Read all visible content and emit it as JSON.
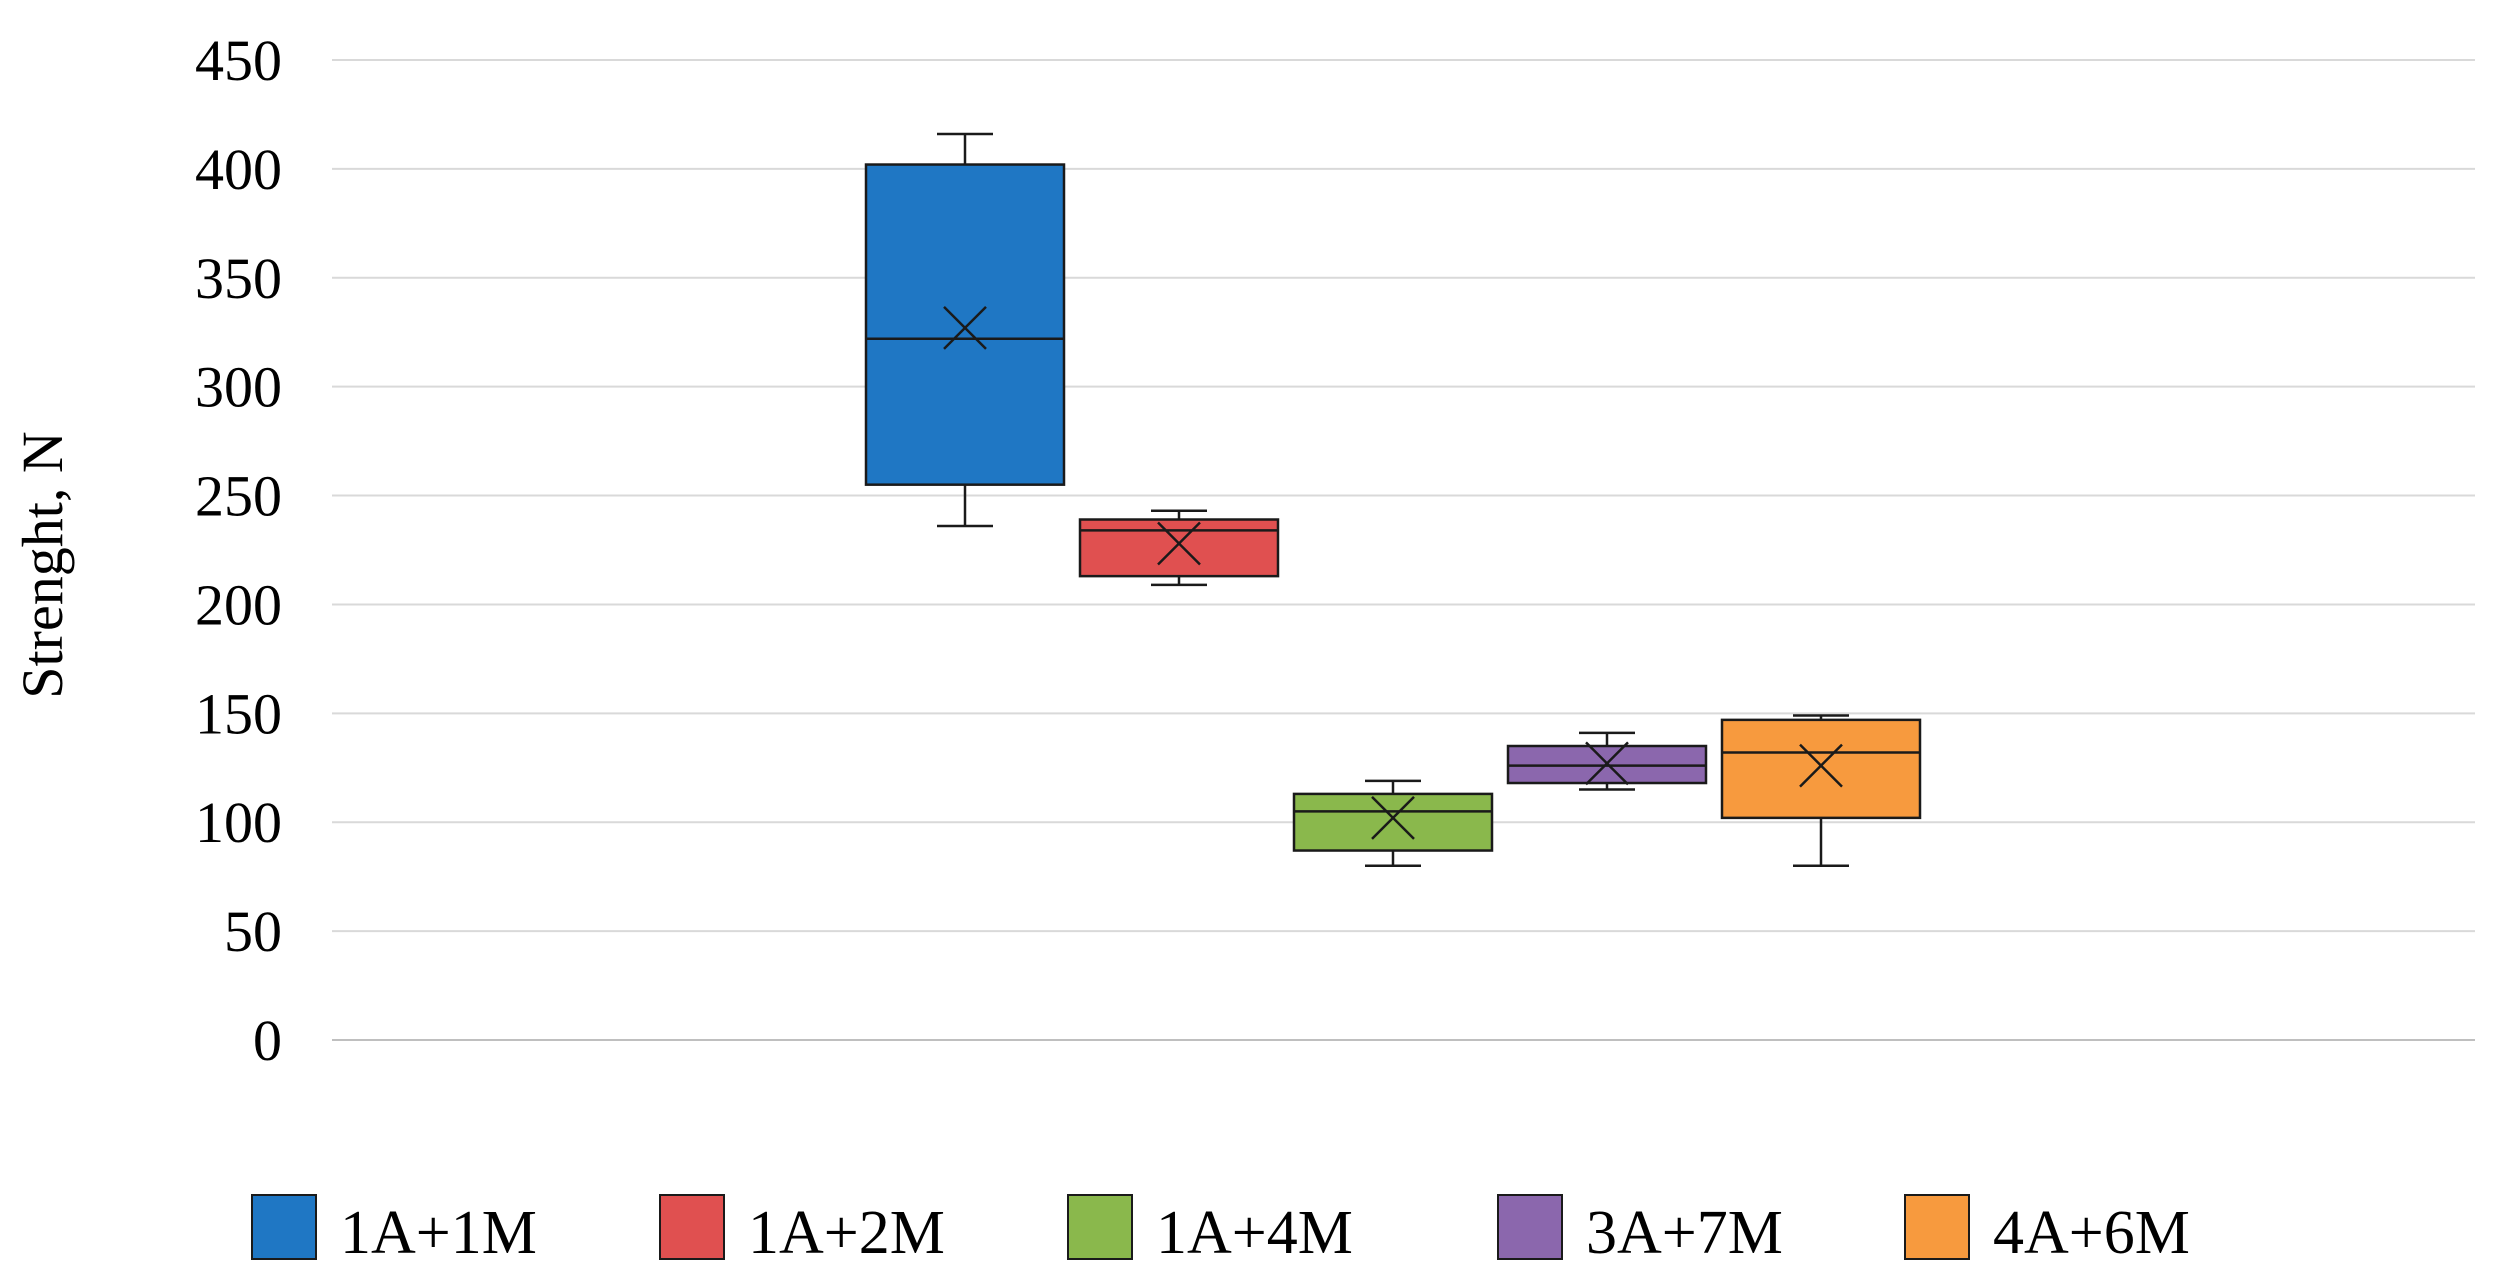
{
  "chart_data": {
    "type": "box",
    "ylabel": "Strenght, N",
    "xlabel": "",
    "ylim": [
      0,
      450
    ],
    "y_ticks": [
      0,
      50,
      100,
      150,
      200,
      250,
      300,
      350,
      400,
      450
    ],
    "grid": true,
    "legend_position": "bottom",
    "series": [
      {
        "name": "1A+1M",
        "color": "#1f77c4",
        "whisker_low": 236,
        "q1": 255,
        "median": 322,
        "q3": 402,
        "whisker_high": 416,
        "mean": 327
      },
      {
        "name": "1A+2M",
        "color": "#e05050",
        "whisker_low": 209,
        "q1": 213,
        "median": 234,
        "q3": 239,
        "whisker_high": 243,
        "mean": 228
      },
      {
        "name": "1A+4M",
        "color": "#8ab84c",
        "whisker_low": 80,
        "q1": 87,
        "median": 105,
        "q3": 113,
        "whisker_high": 119,
        "mean": 102
      },
      {
        "name": "3A+7M",
        "color": "#8b67ad",
        "whisker_low": 115,
        "q1": 118,
        "median": 126,
        "q3": 135,
        "whisker_high": 141,
        "mean": 127
      },
      {
        "name": "4A+6M",
        "color": "#f79a3e",
        "whisker_low": 80,
        "q1": 102,
        "median": 132,
        "q3": 147,
        "whisker_high": 149,
        "mean": 126
      }
    ]
  }
}
